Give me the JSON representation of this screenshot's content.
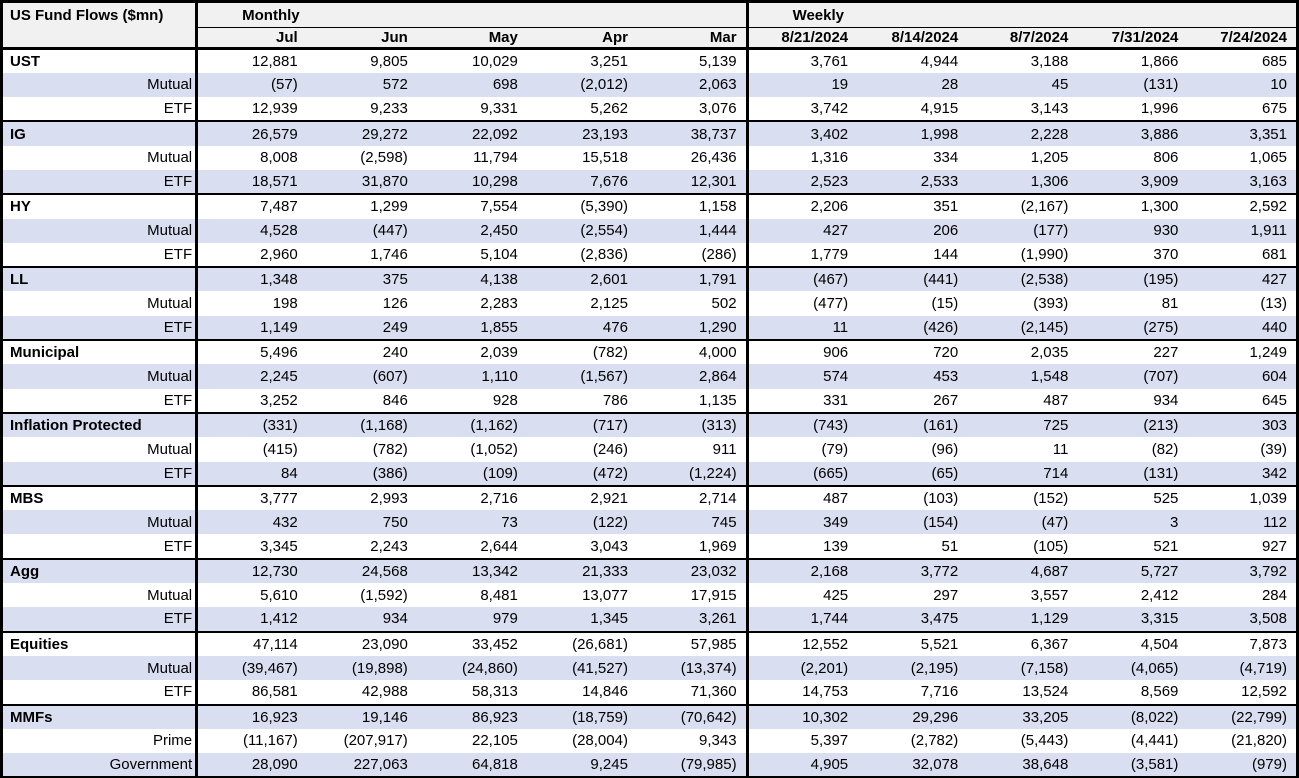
{
  "title": "US Fund Flows ($mn)",
  "colors": {
    "shaded_row": "#d9def0",
    "header_bg": "#f1f1f1",
    "border": "#000000"
  },
  "sections": {
    "monthly": {
      "label": "Monthly",
      "columns": [
        "Jul",
        "Jun",
        "May",
        "Apr",
        "Mar"
      ]
    },
    "weekly": {
      "label": "Weekly",
      "columns": [
        "8/21/2024",
        "8/14/2024",
        "8/7/2024",
        "7/31/2024",
        "7/24/2024"
      ]
    }
  },
  "groups": [
    {
      "name": "UST",
      "rows": [
        {
          "label": "UST",
          "bold": true,
          "monthly": [
            "12,881",
            "9,805",
            "10,029",
            "3,251",
            "5,139"
          ],
          "weekly": [
            "3,761",
            "4,944",
            "3,188",
            "1,866",
            "685"
          ]
        },
        {
          "label": "Mutual",
          "bold": false,
          "monthly": [
            "(57)",
            "572",
            "698",
            "(2,012)",
            "2,063"
          ],
          "weekly": [
            "19",
            "28",
            "45",
            "(131)",
            "10"
          ]
        },
        {
          "label": "ETF",
          "bold": false,
          "monthly": [
            "12,939",
            "9,233",
            "9,331",
            "5,262",
            "3,076"
          ],
          "weekly": [
            "3,742",
            "4,915",
            "3,143",
            "1,996",
            "675"
          ]
        }
      ]
    },
    {
      "name": "IG",
      "rows": [
        {
          "label": "IG",
          "bold": true,
          "monthly": [
            "26,579",
            "29,272",
            "22,092",
            "23,193",
            "38,737"
          ],
          "weekly": [
            "3,402",
            "1,998",
            "2,228",
            "3,886",
            "3,351"
          ]
        },
        {
          "label": "Mutual",
          "bold": false,
          "monthly": [
            "8,008",
            "(2,598)",
            "11,794",
            "15,518",
            "26,436"
          ],
          "weekly": [
            "1,316",
            "334",
            "1,205",
            "806",
            "1,065"
          ]
        },
        {
          "label": "ETF",
          "bold": false,
          "monthly": [
            "18,571",
            "31,870",
            "10,298",
            "7,676",
            "12,301"
          ],
          "weekly": [
            "2,523",
            "2,533",
            "1,306",
            "3,909",
            "3,163"
          ]
        }
      ]
    },
    {
      "name": "HY",
      "rows": [
        {
          "label": "HY",
          "bold": true,
          "monthly": [
            "7,487",
            "1,299",
            "7,554",
            "(5,390)",
            "1,158"
          ],
          "weekly": [
            "2,206",
            "351",
            "(2,167)",
            "1,300",
            "2,592"
          ]
        },
        {
          "label": "Mutual",
          "bold": false,
          "monthly": [
            "4,528",
            "(447)",
            "2,450",
            "(2,554)",
            "1,444"
          ],
          "weekly": [
            "427",
            "206",
            "(177)",
            "930",
            "1,911"
          ]
        },
        {
          "label": "ETF",
          "bold": false,
          "monthly": [
            "2,960",
            "1,746",
            "5,104",
            "(2,836)",
            "(286)"
          ],
          "weekly": [
            "1,779",
            "144",
            "(1,990)",
            "370",
            "681"
          ]
        }
      ]
    },
    {
      "name": "LL",
      "rows": [
        {
          "label": "LL",
          "bold": true,
          "monthly": [
            "1,348",
            "375",
            "4,138",
            "2,601",
            "1,791"
          ],
          "weekly": [
            "(467)",
            "(441)",
            "(2,538)",
            "(195)",
            "427"
          ]
        },
        {
          "label": "Mutual",
          "bold": false,
          "monthly": [
            "198",
            "126",
            "2,283",
            "2,125",
            "502"
          ],
          "weekly": [
            "(477)",
            "(15)",
            "(393)",
            "81",
            "(13)"
          ]
        },
        {
          "label": "ETF",
          "bold": false,
          "monthly": [
            "1,149",
            "249",
            "1,855",
            "476",
            "1,290"
          ],
          "weekly": [
            "11",
            "(426)",
            "(2,145)",
            "(275)",
            "440"
          ]
        }
      ]
    },
    {
      "name": "Municipal",
      "rows": [
        {
          "label": "Municipal",
          "bold": true,
          "monthly": [
            "5,496",
            "240",
            "2,039",
            "(782)",
            "4,000"
          ],
          "weekly": [
            "906",
            "720",
            "2,035",
            "227",
            "1,249"
          ]
        },
        {
          "label": "Mutual",
          "bold": false,
          "monthly": [
            "2,245",
            "(607)",
            "1,110",
            "(1,567)",
            "2,864"
          ],
          "weekly": [
            "574",
            "453",
            "1,548",
            "(707)",
            "604"
          ]
        },
        {
          "label": "ETF",
          "bold": false,
          "monthly": [
            "3,252",
            "846",
            "928",
            "786",
            "1,135"
          ],
          "weekly": [
            "331",
            "267",
            "487",
            "934",
            "645"
          ]
        }
      ]
    },
    {
      "name": "Inflation Protected",
      "rows": [
        {
          "label": "Inflation Protected",
          "bold": true,
          "monthly": [
            "(331)",
            "(1,168)",
            "(1,162)",
            "(717)",
            "(313)"
          ],
          "weekly": [
            "(743)",
            "(161)",
            "725",
            "(213)",
            "303"
          ]
        },
        {
          "label": "Mutual",
          "bold": false,
          "monthly": [
            "(415)",
            "(782)",
            "(1,052)",
            "(246)",
            "911"
          ],
          "weekly": [
            "(79)",
            "(96)",
            "11",
            "(82)",
            "(39)"
          ]
        },
        {
          "label": "ETF",
          "bold": false,
          "monthly": [
            "84",
            "(386)",
            "(109)",
            "(472)",
            "(1,224)"
          ],
          "weekly": [
            "(665)",
            "(65)",
            "714",
            "(131)",
            "342"
          ]
        }
      ]
    },
    {
      "name": "MBS",
      "rows": [
        {
          "label": "MBS",
          "bold": true,
          "monthly": [
            "3,777",
            "2,993",
            "2,716",
            "2,921",
            "2,714"
          ],
          "weekly": [
            "487",
            "(103)",
            "(152)",
            "525",
            "1,039"
          ]
        },
        {
          "label": "Mutual",
          "bold": false,
          "monthly": [
            "432",
            "750",
            "73",
            "(122)",
            "745"
          ],
          "weekly": [
            "349",
            "(154)",
            "(47)",
            "3",
            "112"
          ]
        },
        {
          "label": "ETF",
          "bold": false,
          "monthly": [
            "3,345",
            "2,243",
            "2,644",
            "3,043",
            "1,969"
          ],
          "weekly": [
            "139",
            "51",
            "(105)",
            "521",
            "927"
          ]
        }
      ]
    },
    {
      "name": "Agg",
      "rows": [
        {
          "label": "Agg",
          "bold": true,
          "monthly": [
            "12,730",
            "24,568",
            "13,342",
            "21,333",
            "23,032"
          ],
          "weekly": [
            "2,168",
            "3,772",
            "4,687",
            "5,727",
            "3,792"
          ]
        },
        {
          "label": "Mutual",
          "bold": false,
          "monthly": [
            "5,610",
            "(1,592)",
            "8,481",
            "13,077",
            "17,915"
          ],
          "weekly": [
            "425",
            "297",
            "3,557",
            "2,412",
            "284"
          ]
        },
        {
          "label": "ETF",
          "bold": false,
          "monthly": [
            "1,412",
            "934",
            "979",
            "1,345",
            "3,261"
          ],
          "weekly": [
            "1,744",
            "3,475",
            "1,129",
            "3,315",
            "3,508"
          ]
        }
      ]
    },
    {
      "name": "Equities",
      "rows": [
        {
          "label": "Equities",
          "bold": true,
          "monthly": [
            "47,114",
            "23,090",
            "33,452",
            "(26,681)",
            "57,985"
          ],
          "weekly": [
            "12,552",
            "5,521",
            "6,367",
            "4,504",
            "7,873"
          ]
        },
        {
          "label": "Mutual",
          "bold": false,
          "monthly": [
            "(39,467)",
            "(19,898)",
            "(24,860)",
            "(41,527)",
            "(13,374)"
          ],
          "weekly": [
            "(2,201)",
            "(2,195)",
            "(7,158)",
            "(4,065)",
            "(4,719)"
          ]
        },
        {
          "label": "ETF",
          "bold": false,
          "monthly": [
            "86,581",
            "42,988",
            "58,313",
            "14,846",
            "71,360"
          ],
          "weekly": [
            "14,753",
            "7,716",
            "13,524",
            "8,569",
            "12,592"
          ]
        }
      ]
    },
    {
      "name": "MMFs",
      "rows": [
        {
          "label": "MMFs",
          "bold": true,
          "monthly": [
            "16,923",
            "19,146",
            "86,923",
            "(18,759)",
            "(70,642)"
          ],
          "weekly": [
            "10,302",
            "29,296",
            "33,205",
            "(8,022)",
            "(22,799)"
          ]
        },
        {
          "label": "Prime",
          "bold": false,
          "monthly": [
            "(11,167)",
            "(207,917)",
            "22,105",
            "(28,004)",
            "9,343"
          ],
          "weekly": [
            "5,397",
            "(2,782)",
            "(5,443)",
            "(4,441)",
            "(21,820)"
          ]
        },
        {
          "label": "Government",
          "bold": false,
          "monthly": [
            "28,090",
            "227,063",
            "64,818",
            "9,245",
            "(79,985)"
          ],
          "weekly": [
            "4,905",
            "32,078",
            "38,648",
            "(3,581)",
            "(979)"
          ]
        }
      ]
    }
  ]
}
